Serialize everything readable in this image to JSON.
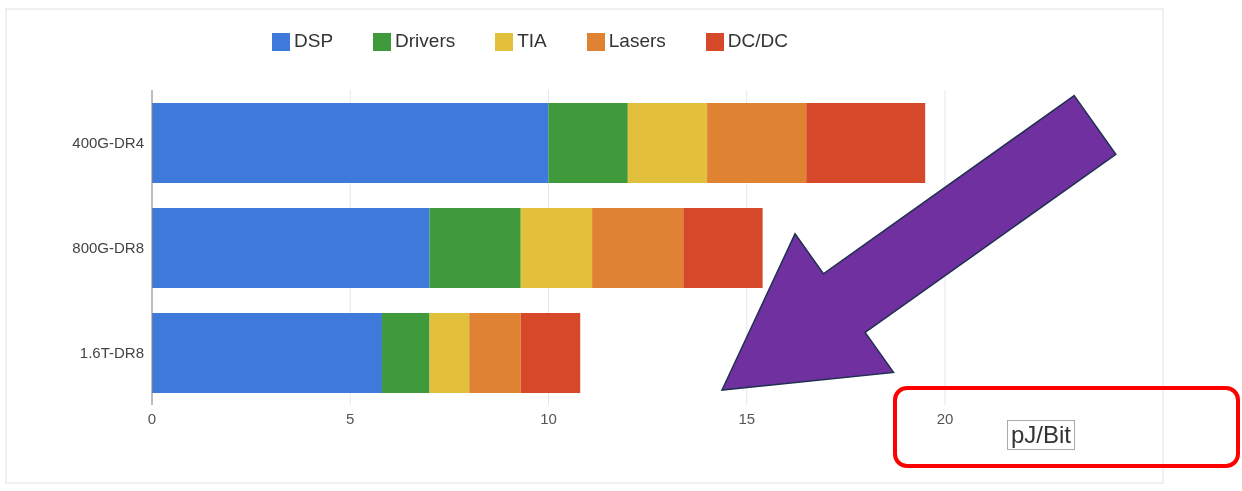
{
  "chart_data": {
    "type": "bar",
    "orientation": "horizontal",
    "stacked": true,
    "categories": [
      "400G-DR4",
      "800G-DR8",
      "1.6T-DR8"
    ],
    "series": [
      {
        "name": "DSP",
        "color": "#3d7ad9",
        "values": [
          10,
          7,
          5.8
        ]
      },
      {
        "name": "Drivers",
        "color": "#3f9a3c",
        "values": [
          2,
          2.3,
          1.2
        ]
      },
      {
        "name": "TIA",
        "color": "#e3c03c",
        "values": [
          2,
          1.8,
          1
        ]
      },
      {
        "name": "Lasers",
        "color": "#df8231",
        "values": [
          2.5,
          2.3,
          1.3
        ]
      },
      {
        "name": "DC/DC",
        "color": "#d6482a",
        "values": [
          3,
          2,
          1.5
        ]
      }
    ],
    "xlim": [
      0,
      20
    ],
    "xticks": [
      0,
      5,
      10,
      15,
      20
    ],
    "xlabel": "pJ/Bit",
    "grid": "x",
    "legend": "top"
  }
}
